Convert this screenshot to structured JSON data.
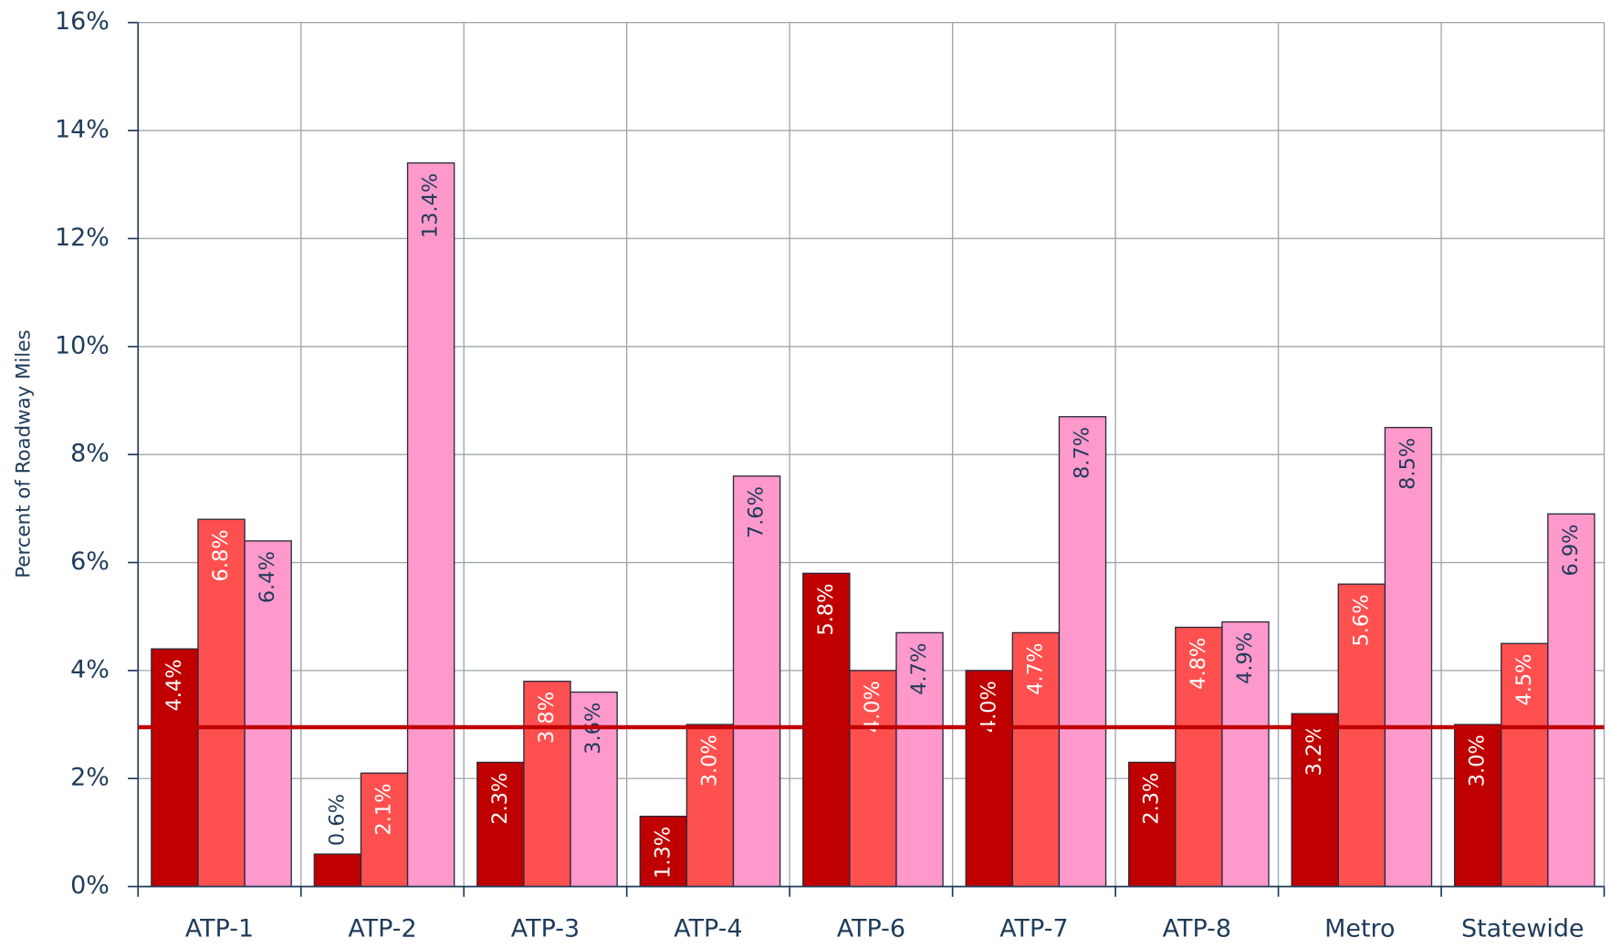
{
  "chart_data": {
    "type": "bar",
    "y_label": "Percent of Roadway Miles",
    "categories": [
      "ATP-1",
      "ATP-2",
      "ATP-3",
      "ATP-4",
      "ATP-6",
      "ATP-7",
      "ATP-8",
      "Metro",
      "Statewide"
    ],
    "series": [
      {
        "color": "#c00000",
        "values": [
          4.4,
          0.6,
          2.3,
          1.3,
          5.8,
          4.0,
          2.3,
          3.2,
          3.0
        ],
        "value_labels": [
          "4.4%",
          "0.6%",
          "2.3%",
          "1.3%",
          "5.8%",
          "4.0%",
          "2.3%",
          "3.2%",
          "3.0%"
        ]
      },
      {
        "color": "#ff5050",
        "values": [
          6.8,
          2.1,
          3.8,
          3.0,
          4.0,
          4.7,
          4.8,
          5.6,
          4.5
        ],
        "value_labels": [
          "6.8%",
          "2.1%",
          "3.8%",
          "3.0%",
          "4.0%",
          "4.7%",
          "4.8%",
          "5.6%",
          "4.5%"
        ]
      },
      {
        "color": "#ff99cc",
        "values": [
          6.4,
          13.4,
          3.6,
          7.6,
          4.7,
          8.7,
          4.9,
          8.5,
          6.9
        ],
        "value_labels": [
          "6.4%",
          "13.4%",
          "3.6%",
          "7.6%",
          "4.7%",
          "8.7%",
          "4.9%",
          "8.5%",
          "6.9%"
        ]
      }
    ],
    "reference_line": {
      "value": 2.95,
      "color": "#c00000"
    },
    "ylim": [
      0,
      16
    ],
    "yticks": [
      {
        "value": 0,
        "label": "0%"
      },
      {
        "value": 2,
        "label": "2%"
      },
      {
        "value": 4,
        "label": "4%"
      },
      {
        "value": 6,
        "label": "6%"
      },
      {
        "value": 8,
        "label": "8%"
      },
      {
        "value": 10,
        "label": "10%"
      },
      {
        "value": 12,
        "label": "12%"
      },
      {
        "value": 14,
        "label": "14%"
      },
      {
        "value": 16,
        "label": "16%"
      }
    ],
    "grid": true
  }
}
